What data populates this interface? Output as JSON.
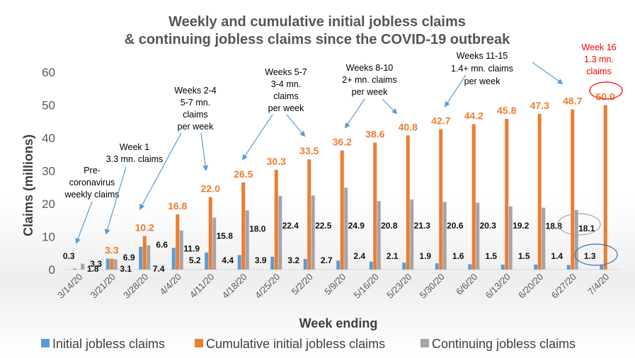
{
  "chart_data": {
    "type": "bar",
    "title_line1": "Weekly and cumulative initial jobless claims",
    "title_line2": "& continuing jobless claims since the COVID-19 outbreak",
    "xlabel": "Week ending",
    "ylabel": "Claims (millions)",
    "ylim": [
      0,
      60
    ],
    "yticks": [
      0,
      10,
      20,
      30,
      40,
      50,
      60
    ],
    "grid": false,
    "legend_position": "bottom",
    "categories": [
      "3/14/20",
      "3/21/20",
      "3/28/20",
      "4/4/20",
      "4/11/20",
      "4/18/20",
      "4/25/20",
      "5/2/20",
      "5/9/20",
      "5/16/20",
      "5/23/20",
      "5/30/20",
      "6/6/20",
      "6/13/20",
      "6/20/20",
      "6/27/20",
      "7/4/20"
    ],
    "series": [
      {
        "name": "Initial jobless claims",
        "color": "#5B9BD5",
        "values": [
          0.3,
          3.3,
          6.9,
          6.6,
          5.2,
          4.4,
          3.9,
          3.2,
          2.7,
          2.4,
          2.1,
          1.9,
          1.6,
          1.5,
          1.5,
          1.4,
          1.3
        ]
      },
      {
        "name": "Cumulative initial jobless claims",
        "color": "#ED7D31",
        "values": [
          null,
          3.3,
          10.2,
          16.8,
          22.0,
          26.5,
          30.3,
          33.5,
          36.2,
          38.6,
          40.8,
          42.7,
          44.2,
          45.8,
          47.3,
          48.7,
          50.0
        ]
      },
      {
        "name": "Continuing jobless claims",
        "color": "#A5A5A5",
        "values": [
          1.8,
          3.1,
          7.4,
          11.9,
          15.8,
          18.0,
          22.4,
          22.5,
          24.9,
          20.8,
          21.3,
          20.6,
          20.3,
          19.2,
          18.8,
          18.1,
          null
        ]
      }
    ],
    "data_labels": {
      "initial": [
        "0.3",
        "3.3",
        "6.9",
        "6.6",
        "5.2",
        "4.4",
        "3.9",
        "3.2",
        "2.7",
        "2.4",
        "2.1",
        "1.9",
        "1.6",
        "1.5",
        "1.5",
        "1.4",
        "1.3"
      ],
      "cumulative": [
        "",
        "3.3",
        "10.2",
        "16.8",
        "22.0",
        "26.5",
        "30.3",
        "33.5",
        "36.2",
        "38.6",
        "40.8",
        "42.7",
        "44.2",
        "45.8",
        "47.3",
        "48.7",
        "50.0"
      ],
      "continuing": [
        "1.8",
        "3.1",
        "7.4",
        "11.9",
        "15.8",
        "18.0",
        "22.4",
        "22.5",
        "24.9",
        "20.8",
        "21.3",
        "20.6",
        "20.3",
        "19.2",
        "18.8",
        "18.1",
        ""
      ]
    },
    "annotations": {
      "pre": [
        "Pre-",
        "coronavirus",
        "weekly claims"
      ],
      "week1": [
        "Week 1",
        "3.3 mn. claims"
      ],
      "weeks2_4": [
        "Weeks 2-4",
        "5-7 mn.",
        "claims",
        "per week"
      ],
      "weeks5_7": [
        "Weeks 5-7",
        "3-4 mn.",
        "claims",
        "per week"
      ],
      "weeks8_10": [
        "Weeks 8-10",
        "2+ mn. claims",
        "per week"
      ],
      "weeks11_15": [
        "Weeks 11-15",
        "1.4+ mn. claims",
        "per week"
      ],
      "week16": [
        "Week 16",
        "1.3 mn.",
        "claims"
      ]
    },
    "annotation_colors": {
      "text": "#000000",
      "week16": "#FF0000",
      "arrow": "#5B9BD5",
      "highlight_red": "#FF0000",
      "highlight_grey": "#A5A5A5",
      "highlight_blue": "#2E75B6"
    }
  }
}
